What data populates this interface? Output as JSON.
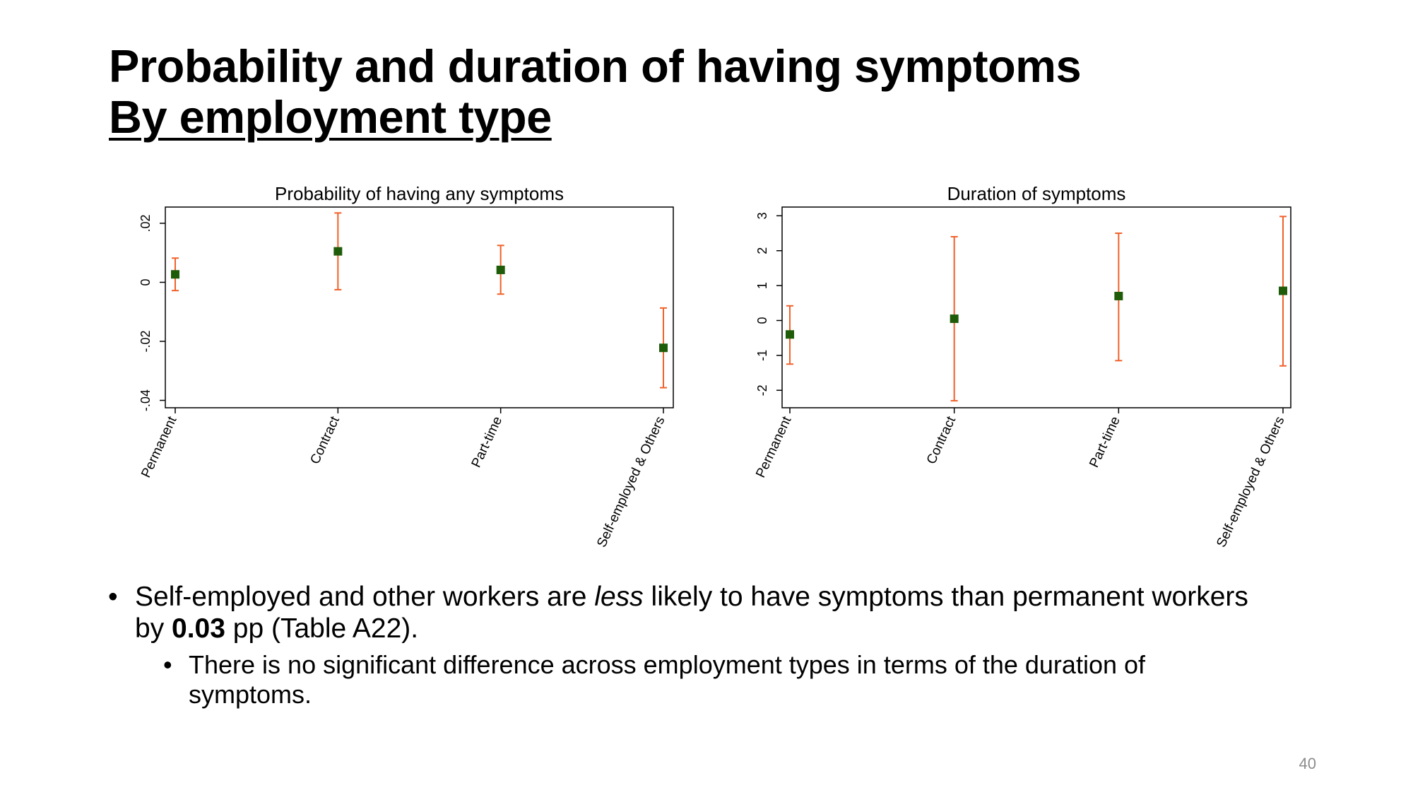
{
  "slide": {
    "title": "Probability and duration of having symptoms",
    "subtitle": "By employment type",
    "page_number": "40",
    "bullet_1": {
      "part_1": "Self-employed and other workers are ",
      "emphasis": "less",
      "part_2": " likely to have symptoms than permanent workers by ",
      "bold_value": "0.03",
      "part_3": " pp (Table A22)."
    },
    "bullet_2": "There is no significant difference across employment types in terms of the duration of symptoms.",
    "bullet_glyph": "•"
  },
  "colors": {
    "marker": "#1f5c0a",
    "error_bar": "#f0612a",
    "axis": "#000000"
  },
  "chart_data": [
    {
      "type": "scatter",
      "title": "Probability of having any symptoms",
      "categories": [
        "Permanent",
        "Contract",
        "Part-time",
        "Self-employed & Others"
      ],
      "values": [
        0.0027,
        0.0105,
        0.0042,
        -0.0222
      ],
      "ci_low": [
        -0.0028,
        -0.0025,
        -0.004,
        -0.0357
      ],
      "ci_high": [
        0.0082,
        0.0235,
        0.0125,
        -0.0087
      ],
      "y_ticks": [
        -0.04,
        -0.02,
        0,
        0.02
      ],
      "y_tick_labels": [
        "-.04",
        "-.02",
        "0",
        ".02"
      ],
      "ylim": [
        -0.0425,
        0.0255
      ],
      "grid": false,
      "legend": "none"
    },
    {
      "type": "scatter",
      "title": "Duration of symptoms",
      "categories": [
        "Permanent",
        "Contract",
        "Part-time",
        "Self-employed & Others"
      ],
      "values": [
        -0.4,
        0.05,
        0.7,
        0.85
      ],
      "ci_low": [
        -1.25,
        -2.3,
        -1.15,
        -1.3
      ],
      "ci_high": [
        0.42,
        2.4,
        2.5,
        2.98
      ],
      "y_ticks": [
        -2,
        -1,
        0,
        1,
        2,
        3
      ],
      "y_tick_labels": [
        "-2",
        "-1",
        "0",
        "1",
        "2",
        "3"
      ],
      "ylim": [
        -2.5,
        3.25
      ],
      "grid": false,
      "legend": "none"
    }
  ]
}
